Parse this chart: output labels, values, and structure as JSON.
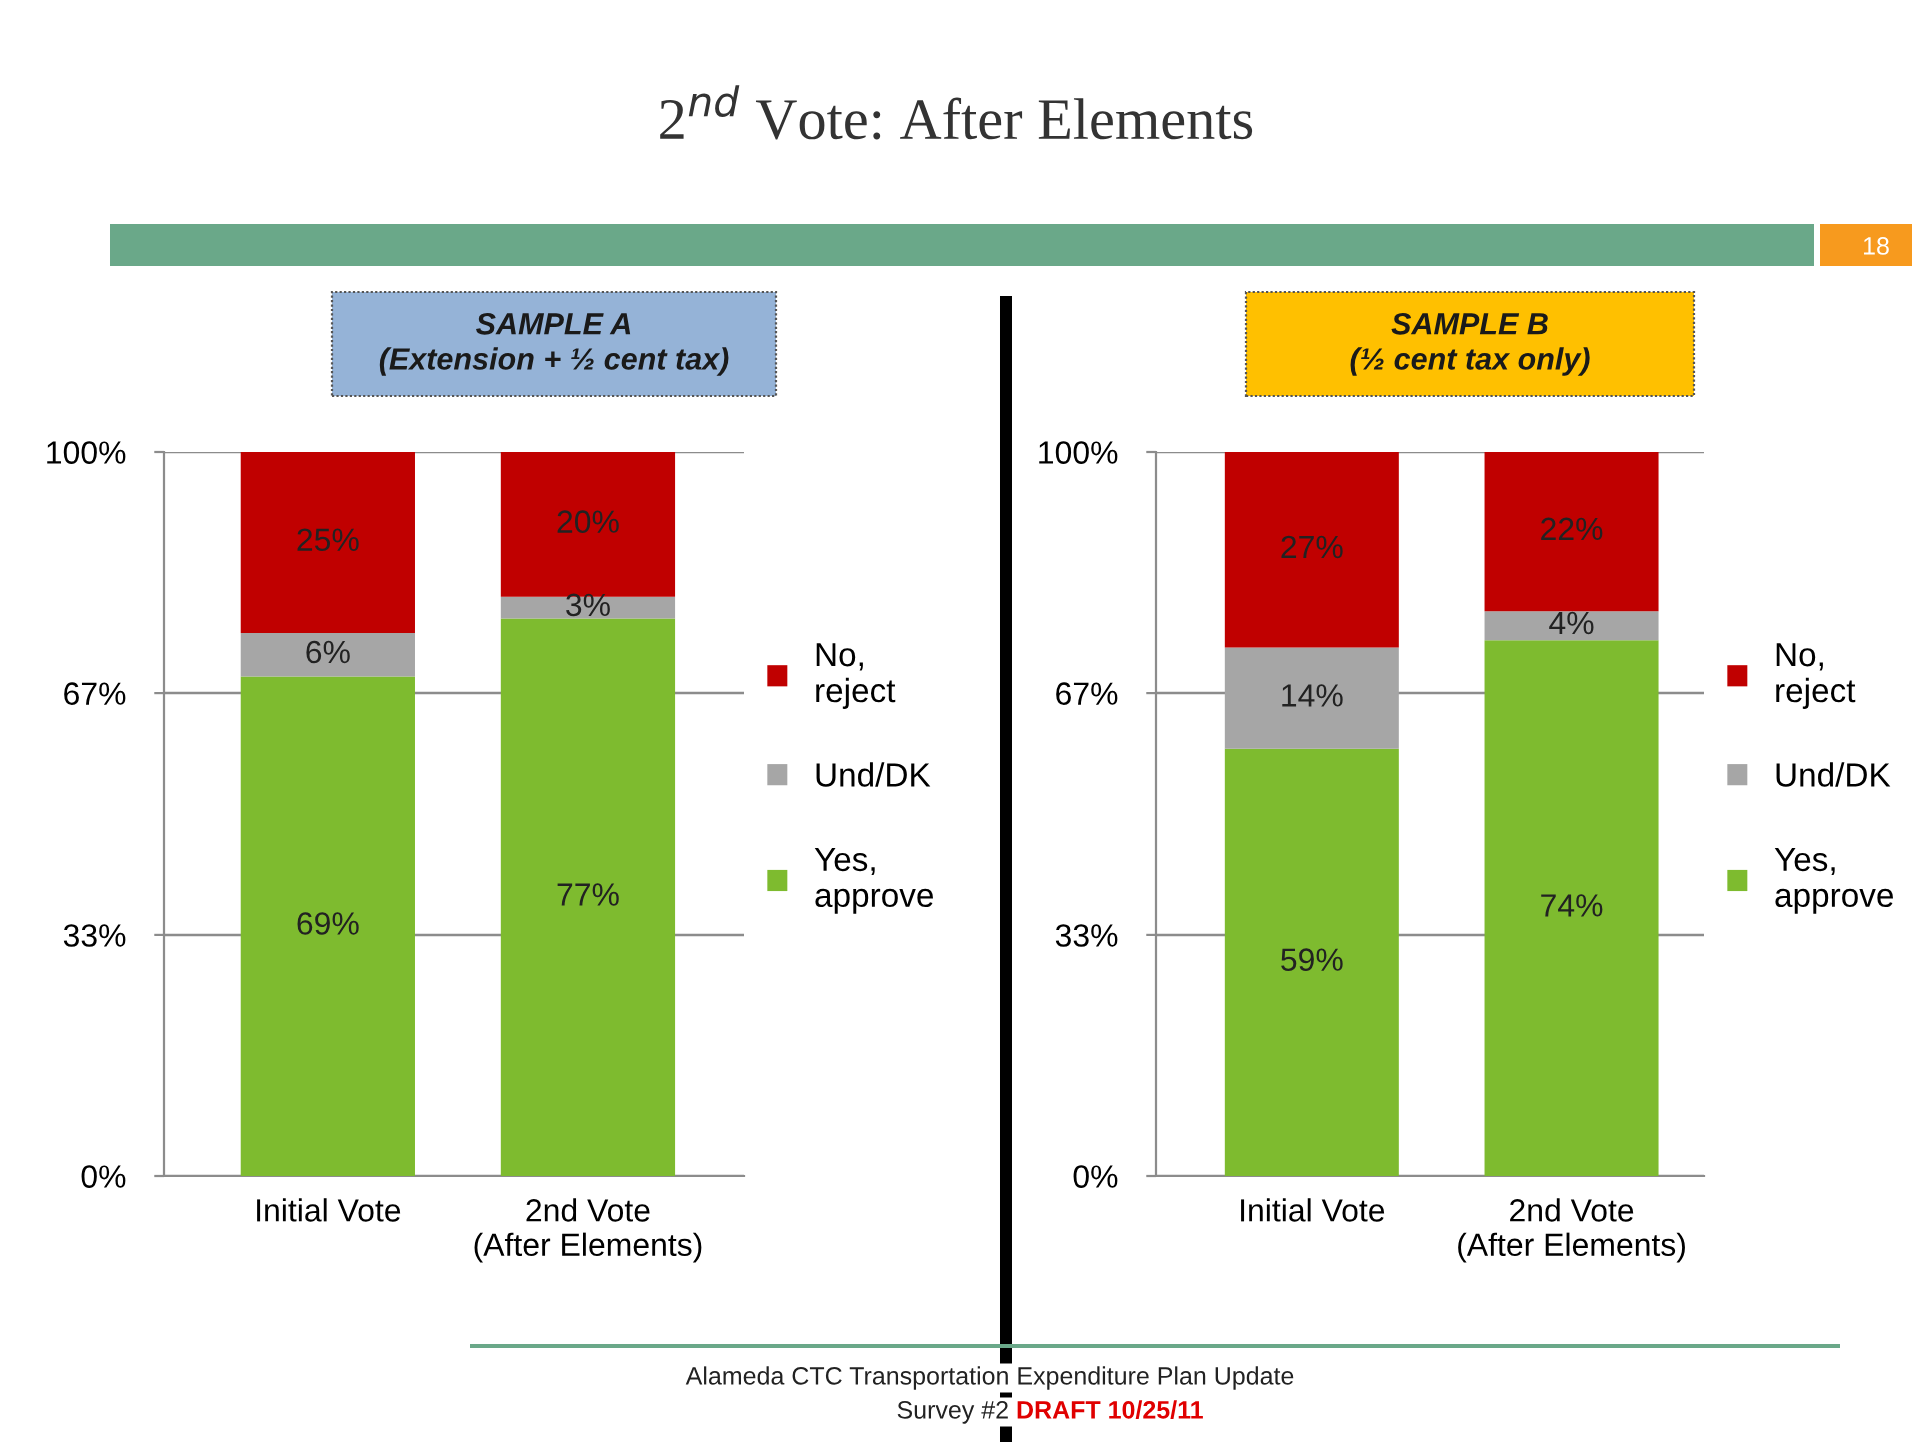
{
  "chart_data": [
    {
      "type": "bar",
      "title": "2$^{nd}$ Vote: After Elements",
      "subtitle": "SAMPLE A\n(Extension + ½ cent tax)",
      "stacked": true,
      "categories": [
        "Initial Vote",
        "2nd Vote\n(After Elements)"
      ],
      "series": [
        {
          "name": "Yes,\napprove",
          "color": "#7ebb2f",
          "values": [
            69,
            77
          ],
          "value_labels": [
            "69%",
            "77%"
          ]
        },
        {
          "name": "Und/DK",
          "color": "#a6a6a6",
          "values": [
            6,
            3
          ],
          "value_labels": [
            "6%",
            "3%"
          ]
        },
        {
          "name": "No,\nreject",
          "color": "#c00000",
          "values": [
            25,
            20
          ],
          "value_labels": [
            "25%",
            "20%"
          ]
        }
      ],
      "ylim": [
        0,
        100
      ],
      "yticks": [
        {
          "value": 0,
          "label": "0%"
        },
        {
          "value": 33.3,
          "label": "33%"
        },
        {
          "value": 66.7,
          "label": "67%"
        },
        {
          "value": 100,
          "label": "100%"
        }
      ],
      "grid": "y",
      "legend": "right",
      "annotations": [
        "18",
        "Alameda CTC Transportation Expenditure Plan Update",
        "Survey #2",
        "DRAFT 10/25/11"
      ]
    },
    {
      "type": "bar",
      "subtitle": "SAMPLE B\n(½ cent tax only)",
      "stacked": true,
      "categories": [
        "Initial Vote",
        "2nd Vote\n(After Elements)"
      ],
      "series": [
        {
          "name": "Yes,\napprove",
          "color": "#7ebb2f",
          "values": [
            59,
            74
          ],
          "value_labels": [
            "59%",
            "74%"
          ]
        },
        {
          "name": "Und/DK",
          "color": "#a6a6a6",
          "values": [
            14,
            4
          ],
          "value_labels": [
            "14%",
            "4%"
          ]
        },
        {
          "name": "No,\nreject",
          "color": "#c00000",
          "values": [
            27,
            22
          ],
          "value_labels": [
            "27%",
            "22%"
          ]
        }
      ],
      "ylim": [
        0,
        100
      ],
      "yticks": [
        {
          "value": 0,
          "label": "0%"
        },
        {
          "value": 33.3,
          "label": "33%"
        },
        {
          "value": 66.7,
          "label": "67%"
        },
        {
          "value": 100,
          "label": "100%"
        }
      ],
      "grid": "y",
      "legend": "right"
    }
  ]
}
